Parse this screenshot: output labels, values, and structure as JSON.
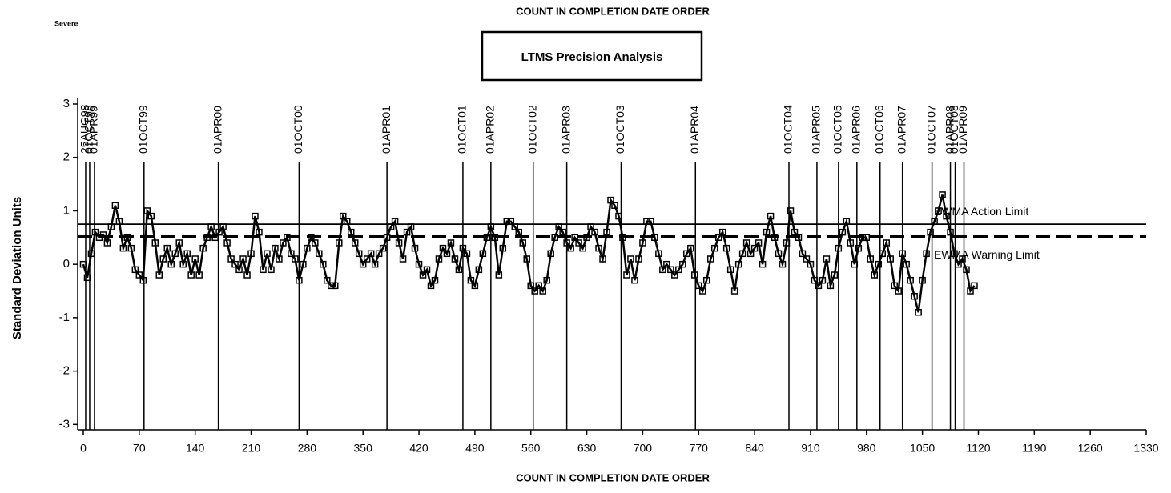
{
  "chart_data": {
    "type": "line",
    "title": "COUNT IN COMPLETION DATE ORDER",
    "corner_note": "Severe",
    "box_title": "LTMS Precision Analysis",
    "x_label": "COUNT IN COMPLETION DATE ORDER",
    "y_label": "Standard Deviation Units",
    "xlim": [
      -7,
      1330
    ],
    "ylim": [
      -3.1,
      3
    ],
    "xticks": [
      0,
      70,
      140,
      210,
      280,
      350,
      420,
      490,
      560,
      630,
      700,
      770,
      840,
      910,
      980,
      1050,
      1120,
      1190,
      1260,
      1330
    ],
    "yticks": [
      -3,
      -2,
      -1,
      0,
      1,
      2,
      3
    ],
    "series": [
      {
        "color": "#000000",
        "marker": "square",
        "x": [
          0,
          5,
          10,
          15,
          20,
          25,
          30,
          35,
          40,
          45,
          50,
          55,
          60,
          65,
          70,
          75,
          80,
          85,
          90,
          95,
          100,
          105,
          110,
          115,
          120,
          125,
          130,
          135,
          140,
          145,
          150,
          155,
          160,
          165,
          170,
          175,
          180,
          185,
          190,
          195,
          200,
          205,
          210,
          215,
          220,
          225,
          230,
          235,
          240,
          245,
          250,
          255,
          260,
          265,
          270,
          275,
          280,
          285,
          290,
          295,
          300,
          305,
          310,
          315,
          320,
          325,
          330,
          335,
          340,
          345,
          350,
          355,
          360,
          365,
          370,
          375,
          380,
          385,
          390,
          395,
          400,
          405,
          410,
          415,
          420,
          425,
          430,
          435,
          440,
          445,
          450,
          455,
          460,
          465,
          470,
          475,
          480,
          485,
          490,
          495,
          500,
          505,
          510,
          515,
          520,
          525,
          530,
          535,
          540,
          545,
          550,
          555,
          560,
          565,
          570,
          575,
          580,
          585,
          590,
          595,
          600,
          605,
          610,
          615,
          620,
          625,
          630,
          635,
          640,
          645,
          650,
          655,
          660,
          665,
          670,
          675,
          680,
          685,
          690,
          695,
          700,
          705,
          710,
          715,
          720,
          725,
          730,
          735,
          740,
          745,
          750,
          755,
          760,
          765,
          770,
          775,
          780,
          785,
          790,
          795,
          800,
          805,
          810,
          815,
          820,
          825,
          830,
          835,
          840,
          845,
          850,
          855,
          860,
          865,
          870,
          875,
          880,
          885,
          890,
          895,
          900,
          905,
          910,
          915,
          920,
          925,
          930,
          935,
          940,
          945,
          950,
          955,
          960,
          965,
          970,
          975,
          980,
          985,
          990,
          995,
          1000,
          1005,
          1010,
          1015,
          1020,
          1025,
          1030,
          1035,
          1040,
          1045,
          1050,
          1055,
          1060,
          1065,
          1070,
          1075,
          1080,
          1085,
          1090,
          1095,
          1100,
          1105,
          1110,
          1115
        ],
        "values": [
          0,
          -0.25,
          0.2,
          0.6,
          0.5,
          0.55,
          0.4,
          0.7,
          1.1,
          0.8,
          0.3,
          0.5,
          0.3,
          -0.1,
          -0.2,
          -0.3,
          1.0,
          0.9,
          0.4,
          -0.2,
          0.1,
          0.3,
          0,
          0.2,
          0.4,
          0,
          0.2,
          -0.2,
          0.1,
          -0.2,
          0.3,
          0.5,
          0.7,
          0.5,
          0.6,
          0.7,
          0.4,
          0.1,
          0,
          -0.1,
          0.1,
          -0.2,
          0.2,
          0.9,
          0.6,
          -0.1,
          0.2,
          -0.1,
          0.3,
          0.1,
          0.4,
          0.5,
          0.2,
          0.1,
          -0.3,
          0,
          0.3,
          0.5,
          0.4,
          0.2,
          0,
          -0.3,
          -0.4,
          -0.4,
          0.4,
          0.9,
          0.8,
          0.6,
          0.4,
          0.2,
          0,
          0.1,
          0.2,
          0,
          0.2,
          0.3,
          0.5,
          0.7,
          0.8,
          0.4,
          0.1,
          0.6,
          0.7,
          0.3,
          0,
          -0.2,
          -0.1,
          -0.4,
          -0.3,
          0.1,
          0.3,
          0.2,
          0.4,
          0.1,
          -0.1,
          0.3,
          0.2,
          -0.3,
          -0.4,
          -0.1,
          0.2,
          0.5,
          0.7,
          0.5,
          -0.2,
          0.3,
          0.8,
          0.8,
          0.7,
          0.6,
          0.4,
          0.1,
          -0.4,
          -0.5,
          -0.4,
          -0.5,
          -0.3,
          0.2,
          0.5,
          0.7,
          0.6,
          0.4,
          0.3,
          0.5,
          0.4,
          0.3,
          0.5,
          0.7,
          0.6,
          0.3,
          0.1,
          0.6,
          1.2,
          1.1,
          0.9,
          0.5,
          -0.2,
          0.1,
          -0.3,
          0.1,
          0.4,
          0.8,
          0.8,
          0.5,
          0.2,
          -0.1,
          0,
          -0.1,
          -0.2,
          -0.1,
          0,
          0.2,
          0.3,
          -0.2,
          -0.4,
          -0.5,
          -0.3,
          0.1,
          0.3,
          0.5,
          0.6,
          0.3,
          -0.1,
          -0.5,
          0,
          0.2,
          0.4,
          0.2,
          0.3,
          0.4,
          0,
          0.6,
          0.9,
          0.5,
          0.2,
          0,
          0.4,
          1.0,
          0.6,
          0.5,
          0.2,
          0.1,
          0,
          -0.3,
          -0.4,
          -0.3,
          0.1,
          -0.4,
          -0.2,
          0.3,
          0.6,
          0.8,
          0.4,
          0,
          0.3,
          0.5,
          0.5,
          0.1,
          -0.2,
          0,
          0.2,
          0.4,
          0.1,
          -0.4,
          -0.5,
          0.2,
          0,
          -0.3,
          -0.6,
          -0.9,
          -0.3,
          0.2,
          0.6,
          0.8,
          1.0,
          1.3,
          0.9,
          0.6,
          0.2,
          0,
          0.1,
          -0.1,
          -0.5,
          -0.4
        ]
      }
    ],
    "limits": [
      {
        "label": "EWMA Action Limit",
        "value": 0.75,
        "dash": false
      },
      {
        "label": "EWMA Warning Limit",
        "value": 0.52,
        "dash": true
      }
    ],
    "date_lines": {
      "labels": [
        "25AUG98",
        "01OCT98",
        "01APR99",
        "01OCT99",
        "01APR00",
        "01OCT00",
        "01APR01",
        "01OCT01",
        "01APR02",
        "01OCT02",
        "01APR03",
        "01OCT03",
        "01APR04",
        "01OCT04",
        "01APR05",
        "01OCT05",
        "01APR06",
        "01OCT06",
        "01APR07",
        "01OCT07",
        "01APR08",
        "01OCT08",
        "01APR09"
      ],
      "x": [
        3,
        8,
        14,
        76,
        169,
        270,
        380,
        475,
        510,
        563,
        605,
        673,
        766,
        883,
        918,
        945,
        968,
        997,
        1025,
        1062,
        1085,
        1091,
        1102
      ]
    }
  }
}
